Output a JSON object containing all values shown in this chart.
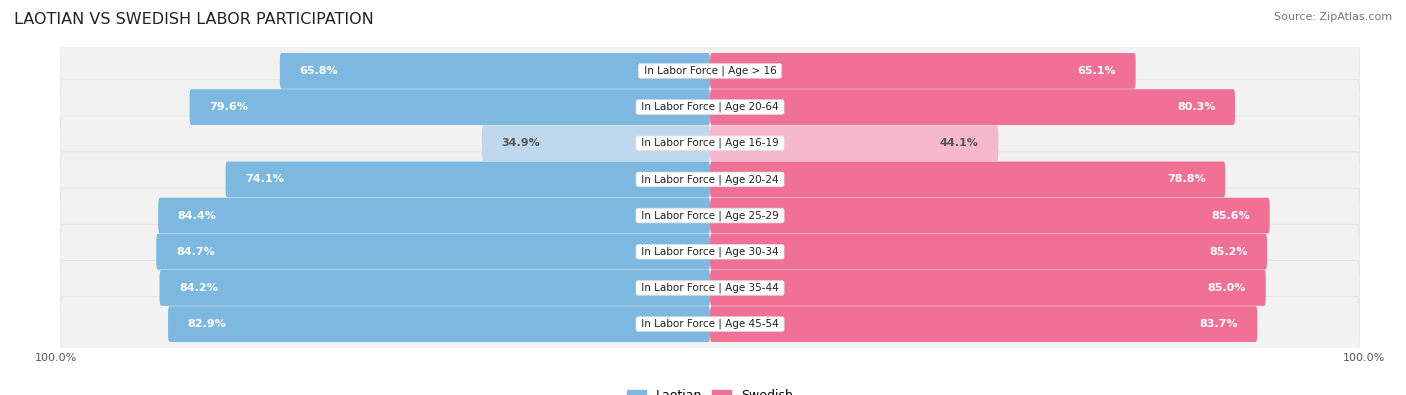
{
  "title": "LAOTIAN VS SWEDISH LABOR PARTICIPATION",
  "source": "Source: ZipAtlas.com",
  "categories": [
    "In Labor Force | Age > 16",
    "In Labor Force | Age 20-64",
    "In Labor Force | Age 16-19",
    "In Labor Force | Age 20-24",
    "In Labor Force | Age 25-29",
    "In Labor Force | Age 30-34",
    "In Labor Force | Age 35-44",
    "In Labor Force | Age 45-54"
  ],
  "laotian": [
    65.8,
    79.6,
    34.9,
    74.1,
    84.4,
    84.7,
    84.2,
    82.9
  ],
  "swedish": [
    65.1,
    80.3,
    44.1,
    78.8,
    85.6,
    85.2,
    85.0,
    83.7
  ],
  "laotian_color": "#7cb8e0",
  "swedish_color": "#f07096",
  "laotian_color_light": "#c0d8ee",
  "swedish_color_light": "#f5b8cc",
  "row_bg": "#f2f2f2",
  "row_border": "#e0e0e0",
  "bar_height": 0.52,
  "label_fontsize": 8.0,
  "category_fontsize": 7.5,
  "title_fontsize": 11.5,
  "legend_fontsize": 9,
  "light_row_index": 2
}
